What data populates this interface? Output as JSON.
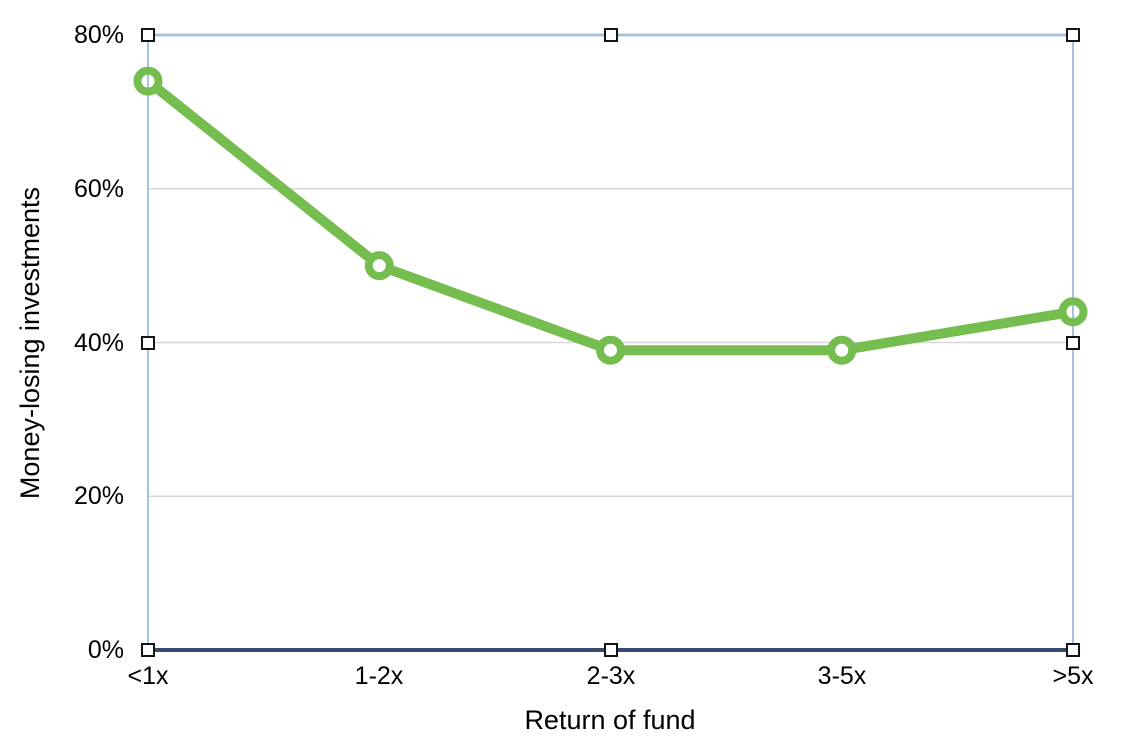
{
  "chart_data": {
    "type": "line",
    "categories": [
      "<1x",
      "1-2x",
      "2-3x",
      "3-5x",
      ">5x"
    ],
    "series": [
      {
        "name": "Money-losing investments",
        "values": [
          74,
          50,
          39,
          39,
          44
        ]
      }
    ],
    "title": "",
    "xlabel": "Return of fund",
    "ylabel": "Money-losing investments",
    "ylim": [
      0,
      80
    ],
    "ytick_labels_top_to_bottom": [
      "80%",
      "60%",
      "40%",
      "20%",
      "0%"
    ],
    "values_unit": "percent",
    "grid": true,
    "legend": false,
    "marker": "open-circle",
    "line_color": "#76bd4f"
  },
  "colors": {
    "series_green": "#76bd4f",
    "plot_border_light_blue": "#a8c1dc",
    "x_axis_navy": "#384a6e",
    "gridline_gray": "#d7d7da",
    "background": "#ffffff",
    "text": "#000000",
    "selection_handle_fill": "#ffffff",
    "selection_handle_border": "#141414"
  },
  "editor_selection": {
    "selected": true,
    "handle_count": 8
  }
}
